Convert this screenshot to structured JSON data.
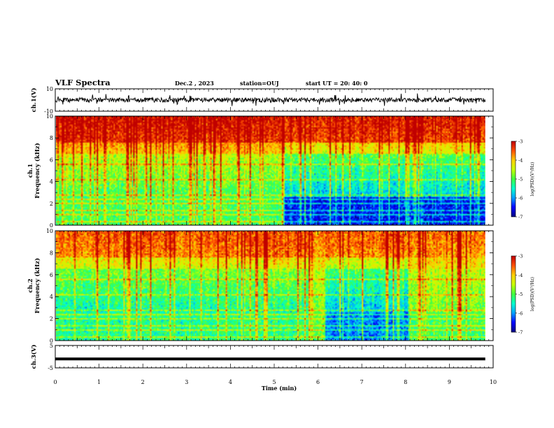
{
  "header": {
    "title": "VLF Spectra",
    "date": "Dec.2 , 2023",
    "station": "station=OUJ",
    "start": "start UT =  20: 40: 0"
  },
  "colors": {
    "waveform": "#000000",
    "colormap": [
      "#00007f",
      "#0000ff",
      "#00a0ff",
      "#00ffd0",
      "#40ff40",
      "#c8ff00",
      "#ffd000",
      "#ff5000",
      "#c00000"
    ]
  },
  "chart_data": [
    {
      "type": "line",
      "name": "ch1-waveform",
      "ylabel": "ch.1(V)",
      "ylim": [
        -10,
        10
      ],
      "yticks": [
        "10",
        "-10"
      ],
      "x_range_min": [
        0,
        9.82
      ],
      "description_values": {
        "baseline_v": 0,
        "typical_amplitude_v": 2,
        "spike_amplitude_v": 6
      }
    },
    {
      "type": "heatmap",
      "name": "ch1-spectrogram",
      "ylabel": "ch.1\nFrequency (kHz)",
      "ylim": [
        0,
        10
      ],
      "yticks": [
        "0",
        "2",
        "4",
        "6",
        "8",
        "10"
      ],
      "colorbar": {
        "label": "log(PSD)(V²/Hz)",
        "range": [
          -7,
          -3
        ],
        "ticks": [
          "-3",
          "-4",
          "-5",
          "-6",
          "-7"
        ]
      },
      "regimes": [
        {
          "t_start_min": 0.0,
          "t_end_min": 5.2,
          "low_band_level": -5.2,
          "mid_band_level": -5.3,
          "high_band_level": -3.5
        },
        {
          "t_start_min": 5.2,
          "t_end_min": 9.82,
          "low_band_level": -6.6,
          "mid_band_level": -6.0,
          "high_band_level": -3.6
        }
      ]
    },
    {
      "type": "heatmap",
      "name": "ch2-spectrogram",
      "ylabel": "ch.2\nFrequency (kHz)",
      "ylim": [
        0,
        10
      ],
      "yticks": [
        "0",
        "2",
        "4",
        "6",
        "8",
        "10"
      ],
      "colorbar": {
        "label": "log(PSD)(V²/Hz)",
        "range": [
          -7,
          -3
        ],
        "ticks": [
          "-3",
          "-4",
          "-5",
          "-6",
          "-7"
        ]
      },
      "regimes": [
        {
          "t_start_min": 0.0,
          "t_end_min": 5.8,
          "low_band_level": -5.4,
          "mid_band_level": -5.6,
          "high_band_level": -3.9
        },
        {
          "t_start_min": 5.8,
          "t_end_min": 6.15,
          "low_band_level": -5.0,
          "mid_band_level": -5.0,
          "high_band_level": -4.0
        },
        {
          "t_start_min": 6.15,
          "t_end_min": 8.1,
          "low_band_level": -6.2,
          "mid_band_level": -6.0,
          "high_band_level": -3.9
        },
        {
          "t_start_min": 8.1,
          "t_end_min": 9.82,
          "low_band_level": -5.2,
          "mid_band_level": -5.0,
          "high_band_level": -4.0
        }
      ]
    },
    {
      "type": "line",
      "name": "ch3-waveform",
      "ylabel": "ch.3(V)",
      "ylim": [
        -5,
        5
      ],
      "yticks": [
        "5",
        "-5"
      ],
      "x_range_min": [
        0,
        9.82
      ],
      "constant_value_v": -1.0
    }
  ],
  "xaxis": {
    "label": "Time (min)",
    "range": [
      0,
      10
    ],
    "ticks": [
      "0",
      "1",
      "2",
      "3",
      "4",
      "5",
      "6",
      "7",
      "8",
      "9",
      "10"
    ]
  }
}
